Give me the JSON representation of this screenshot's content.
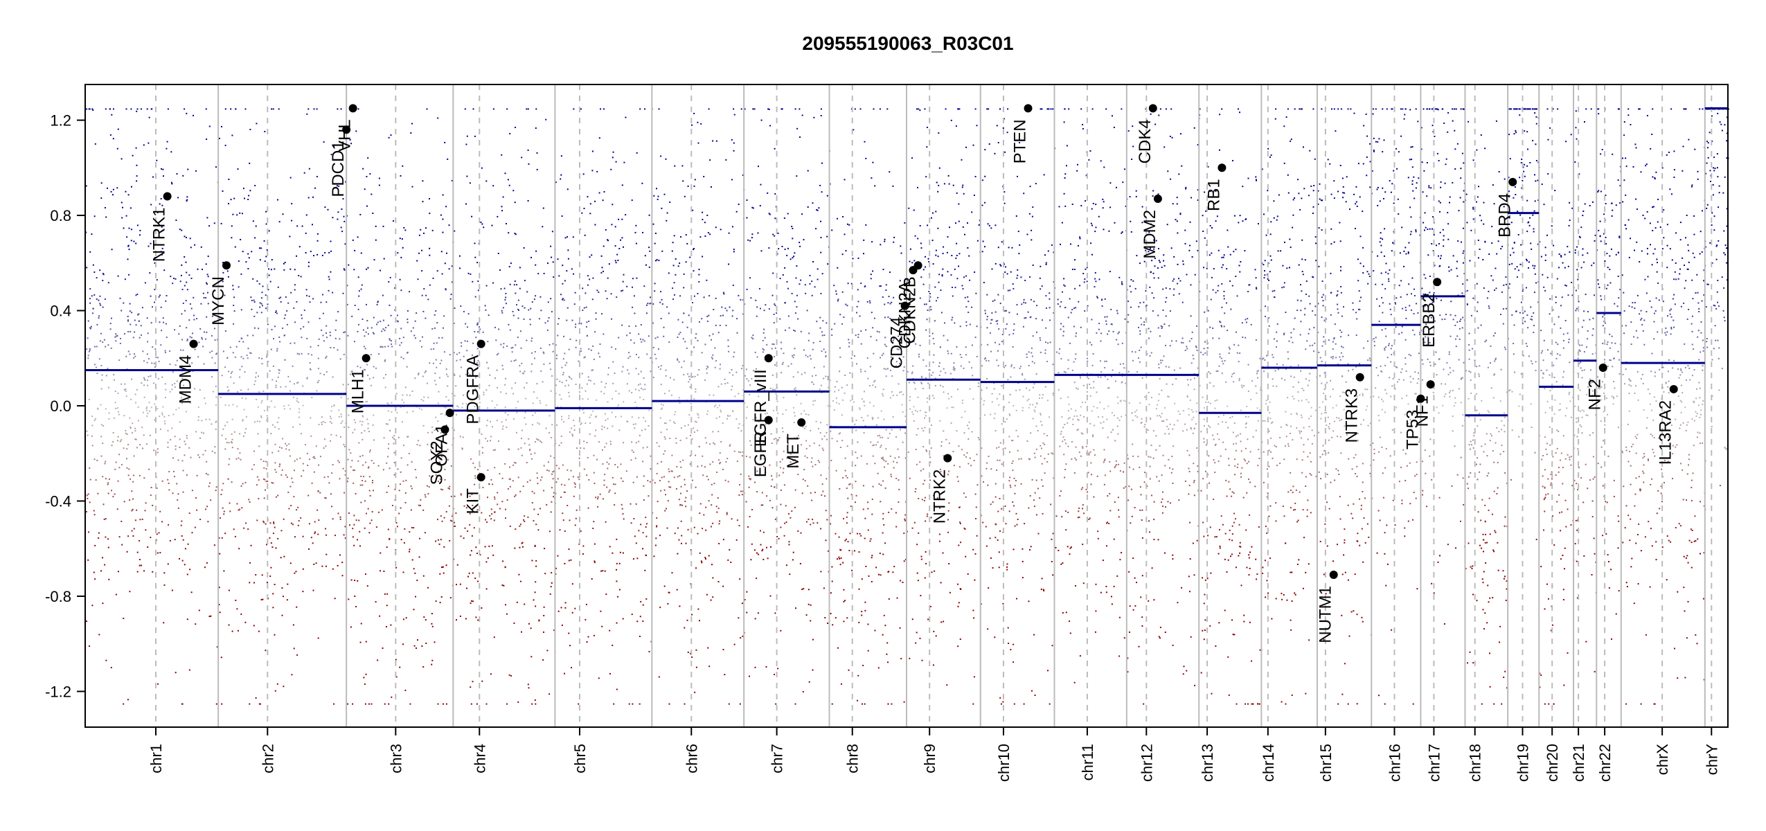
{
  "chart_data": {
    "type": "scatter",
    "title": "209555190063_R03C01",
    "xlabel": "",
    "ylabel": "",
    "ylim": [
      -1.35,
      1.35
    ],
    "clip": [
      -1.25,
      1.25
    ],
    "yticks": [
      -1.2,
      -0.8,
      -0.4,
      0.0,
      0.4,
      0.8,
      1.2
    ],
    "ytick_labels": [
      "-1.2",
      "-0.8",
      "-0.4",
      "0.0",
      "0.4",
      "0.8",
      "1.2"
    ],
    "grid": false,
    "colors": {
      "gain": "#00008B",
      "loss": "#8B0000",
      "neutral": "#bbbbbb",
      "segment": "#00008B",
      "boundary": "#bbbbbb",
      "centromere": "#bbbbbb"
    },
    "chromosomes": [
      {
        "name": "chr1",
        "start": 0.0,
        "end": 0.081,
        "centromere": 0.043,
        "segment": 0.15
      },
      {
        "name": "chr2",
        "start": 0.081,
        "end": 0.159,
        "centromere": 0.111,
        "segment": 0.05
      },
      {
        "name": "chr3",
        "start": 0.159,
        "end": 0.224,
        "centromere": 0.189,
        "segment": 0.0
      },
      {
        "name": "chr4",
        "start": 0.224,
        "end": 0.286,
        "centromere": 0.24,
        "segment": -0.02
      },
      {
        "name": "chr5",
        "start": 0.286,
        "end": 0.345,
        "centromere": 0.301,
        "segment": -0.01
      },
      {
        "name": "chr6",
        "start": 0.345,
        "end": 0.401,
        "centromere": 0.369,
        "segment": 0.02
      },
      {
        "name": "chr7",
        "start": 0.401,
        "end": 0.453,
        "centromere": 0.421,
        "segment": 0.06
      },
      {
        "name": "chr8",
        "start": 0.453,
        "end": 0.5,
        "centromere": 0.467,
        "segment": -0.09
      },
      {
        "name": "chr9",
        "start": 0.5,
        "end": 0.545,
        "centromere": 0.514,
        "segment": 0.11
      },
      {
        "name": "chr10",
        "start": 0.545,
        "end": 0.59,
        "centromere": 0.559,
        "segment": 0.1
      },
      {
        "name": "chr11",
        "start": 0.59,
        "end": 0.634,
        "centromere": 0.61,
        "segment": 0.13
      },
      {
        "name": "chr12",
        "start": 0.634,
        "end": 0.678,
        "centromere": 0.646,
        "segment": 0.13
      },
      {
        "name": "chr13",
        "start": 0.678,
        "end": 0.716,
        "centromere": 0.683,
        "segment": -0.03
      },
      {
        "name": "chr14",
        "start": 0.716,
        "end": 0.75,
        "centromere": 0.72,
        "segment": 0.16
      },
      {
        "name": "chr15",
        "start": 0.75,
        "end": 0.783,
        "centromere": 0.755,
        "segment": 0.17
      },
      {
        "name": "chr16",
        "start": 0.783,
        "end": 0.813,
        "centromere": 0.797,
        "segment": 0.34
      },
      {
        "name": "chr17",
        "start": 0.813,
        "end": 0.84,
        "centromere": 0.821,
        "segment": 0.46
      },
      {
        "name": "chr18",
        "start": 0.84,
        "end": 0.866,
        "centromere": 0.846,
        "segment": -0.04
      },
      {
        "name": "chr19",
        "start": 0.866,
        "end": 0.885,
        "centromere": 0.875,
        "segment": 0.81
      },
      {
        "name": "chr20",
        "start": 0.885,
        "end": 0.906,
        "centromere": 0.893,
        "segment": 0.08
      },
      {
        "name": "chr21",
        "start": 0.906,
        "end": 0.92,
        "centromere": 0.909,
        "segment": 0.19
      },
      {
        "name": "chr22",
        "start": 0.92,
        "end": 0.935,
        "centromere": 0.925,
        "segment": 0.39
      },
      {
        "name": "chrX",
        "start": 0.935,
        "end": 0.986,
        "centromere": 0.96,
        "segment": 0.18
      },
      {
        "name": "chrY",
        "start": 0.986,
        "end": 1.0,
        "centromere": 0.99,
        "segment": 1.25
      }
    ],
    "genes": [
      {
        "name": "NTRK1",
        "x": 0.05,
        "y": 0.88
      },
      {
        "name": "MDM4",
        "x": 0.066,
        "y": 0.26
      },
      {
        "name": "MYCN",
        "x": 0.086,
        "y": 0.59
      },
      {
        "name": "PDCD1",
        "x": 0.159,
        "y": 1.16
      },
      {
        "name": "VHL",
        "x": 0.163,
        "y": 1.25
      },
      {
        "name": "MLH1",
        "x": 0.171,
        "y": 0.2
      },
      {
        "name": "SOX2",
        "x": 0.219,
        "y": -0.1
      },
      {
        "name": "OFA1",
        "x": 0.222,
        "y": -0.03
      },
      {
        "name": "PDGFRA",
        "x": 0.241,
        "y": 0.26
      },
      {
        "name": "KIT",
        "x": 0.241,
        "y": -0.3
      },
      {
        "name": "EGFR_vIII",
        "x": 0.416,
        "y": 0.2
      },
      {
        "name": "EGFR",
        "x": 0.416,
        "y": -0.06
      },
      {
        "name": "MET",
        "x": 0.436,
        "y": -0.07
      },
      {
        "name": "CD274",
        "x": 0.499,
        "y": 0.42
      },
      {
        "name": "CDKN2A",
        "x": 0.504,
        "y": 0.57
      },
      {
        "name": "CDKN2B",
        "x": 0.507,
        "y": 0.59
      },
      {
        "name": "NTRK2",
        "x": 0.525,
        "y": -0.22
      },
      {
        "name": "PTEN",
        "x": 0.574,
        "y": 1.25
      },
      {
        "name": "CDK4",
        "x": 0.65,
        "y": 1.25
      },
      {
        "name": "MDM2",
        "x": 0.653,
        "y": 0.87
      },
      {
        "name": "RB1",
        "x": 0.692,
        "y": 1.0
      },
      {
        "name": "NUTM1",
        "x": 0.76,
        "y": -0.71
      },
      {
        "name": "NTRK3",
        "x": 0.776,
        "y": 0.12
      },
      {
        "name": "TP53",
        "x": 0.813,
        "y": 0.03
      },
      {
        "name": "NF1",
        "x": 0.819,
        "y": 0.09
      },
      {
        "name": "ERBB2",
        "x": 0.823,
        "y": 0.52
      },
      {
        "name": "BRD4",
        "x": 0.869,
        "y": 0.94
      },
      {
        "name": "NF2",
        "x": 0.924,
        "y": 0.16
      },
      {
        "name": "IL13RA2",
        "x": 0.967,
        "y": 0.07
      }
    ]
  }
}
